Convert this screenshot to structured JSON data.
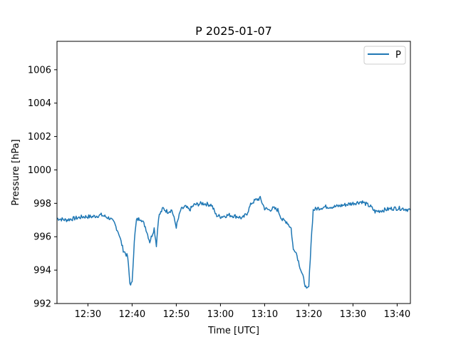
{
  "chart_data": {
    "type": "line",
    "title": "P 2025-01-07",
    "xlabel": "Time [UTC]",
    "ylabel": "Pressure [hPa]",
    "xlim": [
      "12:23",
      "13:43"
    ],
    "ylim": [
      992,
      1007.7
    ],
    "xticks": [
      "12:30",
      "12:40",
      "12:50",
      "13:00",
      "13:10",
      "13:20",
      "13:30",
      "13:40"
    ],
    "yticks": [
      992,
      994,
      996,
      998,
      1000,
      1002,
      1004,
      1006
    ],
    "grid": false,
    "legend": {
      "placement": "top-right",
      "entries": [
        "P"
      ]
    },
    "colors": {
      "series": "#1f77b4"
    },
    "series": [
      {
        "name": "P",
        "points": [
          [
            "12:23",
            997.1
          ],
          [
            "12:25",
            997.0
          ],
          [
            "12:27",
            997.1
          ],
          [
            "12:29",
            997.2
          ],
          [
            "12:31",
            997.2
          ],
          [
            "12:33",
            997.3
          ],
          [
            "12:35",
            997.1
          ],
          [
            "12:36",
            996.8
          ],
          [
            "12:37",
            996.2
          ],
          [
            "12:38",
            995.2
          ],
          [
            "12:39",
            994.8
          ],
          [
            "12:39.5",
            993.2
          ],
          [
            "12:40",
            993.2
          ],
          [
            "12:40.5",
            995.8
          ],
          [
            "12:41",
            997.0
          ],
          [
            "12:42",
            997.1
          ],
          [
            "12:43",
            996.6
          ],
          [
            "12:44",
            995.7
          ],
          [
            "12:45",
            996.5
          ],
          [
            "12:45.5",
            995.5
          ],
          [
            "12:46",
            997.2
          ],
          [
            "12:47",
            997.7
          ],
          [
            "12:48",
            997.5
          ],
          [
            "12:49",
            997.6
          ],
          [
            "12:50",
            996.6
          ],
          [
            "12:51",
            997.6
          ],
          [
            "12:52",
            997.8
          ],
          [
            "12:53",
            997.6
          ],
          [
            "12:54",
            997.9
          ],
          [
            "12:56",
            998.0
          ],
          [
            "12:58",
            997.9
          ],
          [
            "12:59",
            997.3
          ],
          [
            "13:00",
            997.2
          ],
          [
            "13:02",
            997.3
          ],
          [
            "13:04",
            997.2
          ],
          [
            "13:05",
            997.1
          ],
          [
            "13:06",
            997.4
          ],
          [
            "13:07",
            998.0
          ],
          [
            "13:08",
            998.2
          ],
          [
            "13:09",
            998.3
          ],
          [
            "13:10",
            997.7
          ],
          [
            "13:11",
            997.6
          ],
          [
            "13:12",
            997.7
          ],
          [
            "13:13",
            997.6
          ],
          [
            "13:14",
            997.0
          ],
          [
            "13:15",
            996.9
          ],
          [
            "13:16",
            996.5
          ],
          [
            "13:16.5",
            995.2
          ],
          [
            "13:17",
            995.2
          ],
          [
            "13:18",
            994.2
          ],
          [
            "13:19",
            993.3
          ],
          [
            "13:19.5",
            992.8
          ],
          [
            "13:20",
            993.0
          ],
          [
            "13:20.5",
            995.6
          ],
          [
            "13:21",
            997.6
          ],
          [
            "13:22",
            997.7
          ],
          [
            "13:24",
            997.8
          ],
          [
            "13:26",
            997.8
          ],
          [
            "13:28",
            997.9
          ],
          [
            "13:30",
            998.0
          ],
          [
            "13:32",
            998.1
          ],
          [
            "13:34",
            997.8
          ],
          [
            "13:35",
            997.5
          ],
          [
            "13:37",
            997.6
          ],
          [
            "13:39",
            997.7
          ],
          [
            "13:41",
            997.7
          ],
          [
            "13:43",
            997.6
          ]
        ]
      }
    ]
  }
}
